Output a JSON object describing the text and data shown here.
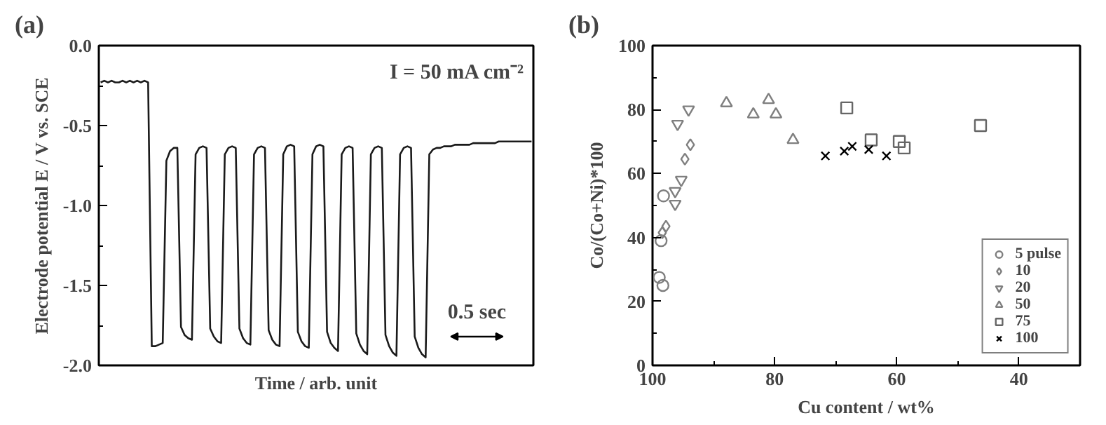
{
  "chart_data": [
    {
      "type": "line",
      "title": "(a)",
      "xlabel": "Time / arb. unit",
      "ylabel": "Electrode potential E / V vs. SCE",
      "annotations": [
        "I = 50 mA cm⁻²",
        "0.5 sec"
      ],
      "categories": [
        null,
        null,
        null,
        null,
        null,
        null,
        null,
        null,
        null,
        null,
        null,
        null,
        null,
        null,
        null,
        null,
        null,
        null,
        null,
        null,
        null,
        null,
        null,
        null,
        null,
        null,
        null,
        null,
        null,
        null,
        null,
        null,
        null,
        null,
        null,
        null,
        null,
        null,
        null,
        null,
        null,
        null,
        null,
        null,
        null,
        null,
        null,
        null,
        null,
        null,
        null,
        null,
        null,
        null,
        null,
        null,
        null,
        null,
        null,
        null,
        null,
        null,
        null,
        null,
        null,
        null,
        null,
        null,
        null,
        null,
        null,
        null,
        null,
        null,
        null,
        null,
        null,
        null,
        null,
        null,
        null,
        null,
        null,
        null,
        null,
        null,
        null,
        null,
        null,
        null,
        null,
        null,
        null,
        null,
        null,
        null,
        null,
        null,
        null,
        null,
        null,
        null,
        null,
        null,
        null,
        null,
        null,
        null,
        null,
        null,
        null,
        null,
        null,
        null,
        null,
        null,
        null,
        null,
        null
      ],
      "series": [
        {
          "color": "#1a1a1a",
          "values": [
            -0.23,
            -0.22,
            -0.23,
            -0.22,
            -0.23,
            -0.23,
            -0.22,
            -0.23,
            -0.22,
            -0.23,
            -0.22,
            -0.23,
            -0.22,
            -0.23,
            -1.88,
            -1.88,
            -1.87,
            -1.86,
            -0.72,
            -0.66,
            -0.64,
            -0.64,
            -1.76,
            -1.81,
            -1.83,
            -1.84,
            -0.68,
            -0.64,
            -0.63,
            -0.64,
            -1.77,
            -1.82,
            -1.85,
            -1.86,
            -0.68,
            -0.64,
            -0.63,
            -0.64,
            -1.77,
            -1.83,
            -1.86,
            -1.87,
            -0.68,
            -0.64,
            -0.63,
            -0.64,
            -1.78,
            -1.84,
            -1.87,
            -1.88,
            -0.68,
            -0.63,
            -0.62,
            -0.63,
            -1.79,
            -1.85,
            -1.88,
            -1.89,
            -0.68,
            -0.63,
            -0.62,
            -0.63,
            -1.79,
            -1.86,
            -1.89,
            -1.91,
            -0.68,
            -0.64,
            -0.63,
            -0.64,
            -1.8,
            -1.87,
            -1.91,
            -1.93,
            -0.68,
            -0.64,
            -0.63,
            -0.64,
            -1.81,
            -1.88,
            -1.92,
            -1.94,
            -0.68,
            -0.64,
            -0.63,
            -0.64,
            -1.82,
            -1.89,
            -1.93,
            -1.95,
            -0.68,
            -0.65,
            -0.64,
            -0.64,
            -0.63,
            -0.63,
            -0.63,
            -0.62,
            -0.62,
            -0.62,
            -0.62,
            -0.62,
            -0.61,
            -0.61,
            -0.61,
            -0.61,
            -0.61,
            -0.61,
            -0.61,
            -0.6,
            -0.6,
            -0.6,
            -0.6,
            -0.6,
            -0.6,
            -0.6,
            -0.6,
            -0.6,
            -0.6
          ]
        }
      ],
      "ylim": [
        -2.0,
        0.0
      ],
      "yticks": [
        {
          "value": 0,
          "label": "0.0"
        },
        {
          "value": -0.25,
          "label": null
        },
        {
          "value": -0.5,
          "label": "-0.5"
        },
        {
          "value": -0.75,
          "label": null
        },
        {
          "value": -1,
          "label": "-1.0"
        },
        {
          "value": -1.25,
          "label": null
        },
        {
          "value": -1.5,
          "label": "-1.5"
        },
        {
          "value": -1.75,
          "label": null
        },
        {
          "value": -2,
          "label": "-2.0"
        }
      ],
      "grid": false,
      "legend": false,
      "tick_labels": "y"
    },
    {
      "type": "scatter",
      "title": "(b)",
      "xlabel": "Cu content / wt%",
      "ylabel": "Co/(Co+Ni)*100",
      "xlim": [
        100,
        30
      ],
      "xticks": [
        100,
        {
          "value": 90,
          "label": null
        },
        80,
        {
          "value": 70,
          "label": null
        },
        60,
        {
          "value": 50,
          "label": null
        },
        40,
        {
          "value": 30,
          "label": null
        }
      ],
      "ylim": [
        0,
        100
      ],
      "yticks": [
        0,
        {
          "value": 10,
          "label": null
        },
        20,
        {
          "value": 30,
          "label": null
        },
        40,
        {
          "value": 50,
          "label": null
        },
        60,
        {
          "value": 70,
          "label": null
        },
        80,
        {
          "value": 90,
          "label": null
        },
        100
      ],
      "grid": false,
      "legend": "bottom right",
      "series": [
        {
          "name": "5 pulse",
          "color": "#7f7f7f",
          "marker": "circle",
          "x": [
            98.2,
            98.6,
            98.9,
            98.3
          ],
          "values": [
            53,
            39,
            27.5,
            25
          ]
        },
        {
          "name": "10",
          "color": "#7f7f7f",
          "marker": "diamond",
          "x": [
            97.8,
            98.4,
            94.7,
            93.8
          ],
          "values": [
            43.5,
            41.5,
            64.5,
            69
          ]
        },
        {
          "name": "20",
          "color": "#7f7f7f",
          "marker": "triangle_down",
          "x": [
            95.9,
            94.1,
            95.3,
            96.3,
            96.3
          ],
          "values": [
            75.5,
            80,
            58,
            54.5,
            50.5
          ]
        },
        {
          "name": "50",
          "color": "#7f7f7f",
          "marker": "triangle",
          "x": [
            87.9,
            83.5,
            81,
            79.8,
            77
          ],
          "values": [
            82,
            78.5,
            83,
            78.5,
            70.5
          ]
        },
        {
          "name": "75",
          "color": "#666666",
          "marker": "square",
          "x": [
            68.2,
            64.2,
            59.6,
            58.8,
            46.3
          ],
          "values": [
            80.5,
            70.5,
            70,
            68,
            75
          ]
        },
        {
          "name": "100",
          "color": "#000000",
          "marker": "cross",
          "x": [
            71.7,
            68.6,
            67.3,
            64.6,
            61.7
          ],
          "values": [
            65.5,
            67,
            68.5,
            67.5,
            65.5
          ]
        }
      ]
    }
  ]
}
